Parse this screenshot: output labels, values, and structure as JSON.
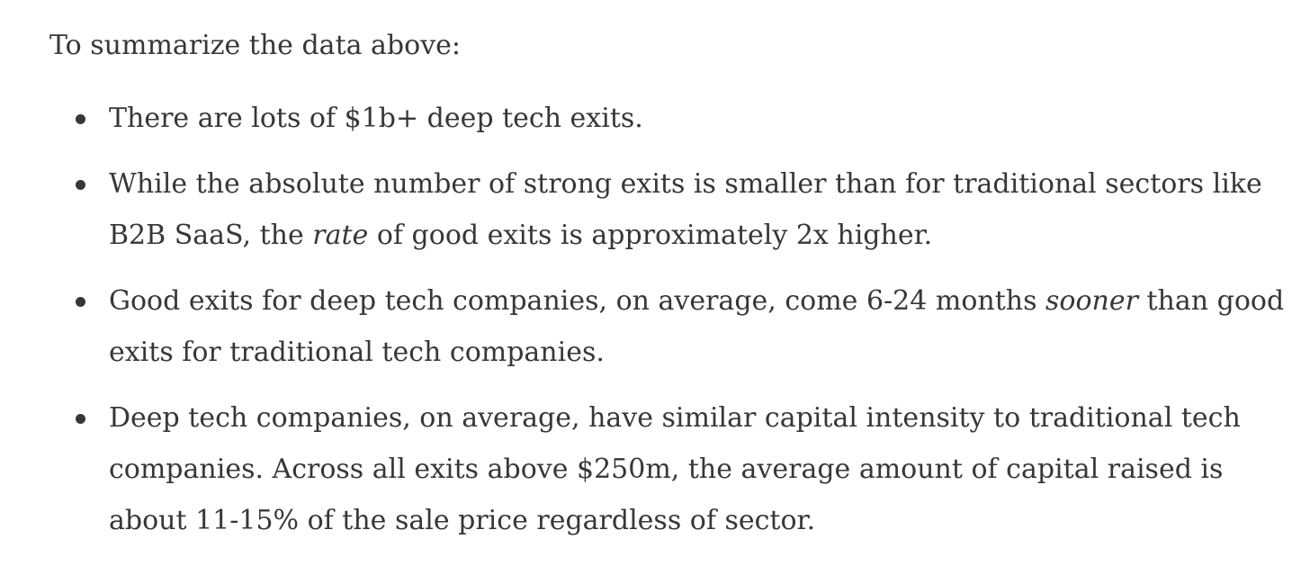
{
  "intro": "To summarize the data above:",
  "bullets": [
    [
      {
        "text": "There are lots of $1b+ deep tech exits."
      }
    ],
    [
      {
        "text": "While the absolute number of strong exits is smaller than for traditional sectors like B2B SaaS, the "
      },
      {
        "text": "rate",
        "italic": true
      },
      {
        "text": " of good exits is approximately 2x higher."
      }
    ],
    [
      {
        "text": "Good exits for deep tech companies, on average, come 6-24 months "
      },
      {
        "text": "sooner",
        "italic": true
      },
      {
        "text": " than good exits for traditional tech companies."
      }
    ],
    [
      {
        "text": "Deep tech companies, on average, have similar capital intensity to traditional tech companies. Across all exits above $250m, the average amount of capital raised is about 11-15% of the sale price regardless of sector."
      }
    ]
  ]
}
